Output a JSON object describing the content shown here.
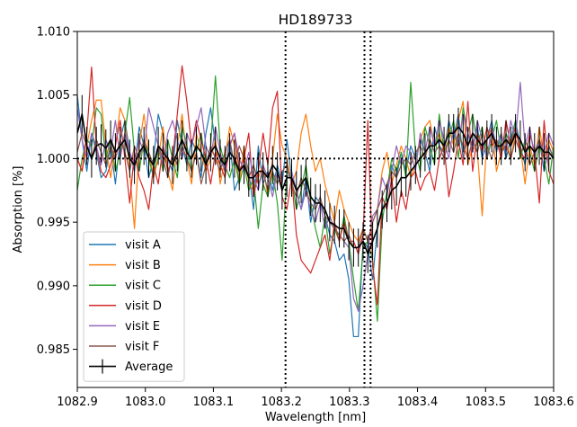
{
  "chart_data": {
    "type": "line",
    "title": "HD189733",
    "xlabel": "Wavelength [nm]",
    "ylabel": "Absorption [%]",
    "xlim": [
      1082.9,
      1083.6
    ],
    "ylim": [
      0.982,
      1.01
    ],
    "xticks": [
      1082.9,
      1083.0,
      1083.1,
      1083.2,
      1083.3,
      1083.4,
      1083.5,
      1083.6
    ],
    "xtick_labels": [
      "1082.9",
      "1083.0",
      "1083.1",
      "1083.2",
      "1083.3",
      "1083.4",
      "1083.5",
      "1083.6"
    ],
    "yticks": [
      0.985,
      0.99,
      0.995,
      1.0,
      1.005,
      1.01
    ],
    "ytick_labels": [
      "0.985",
      "0.990",
      "0.995",
      "1.000",
      "1.005",
      "1.010"
    ],
    "reference_lines": {
      "horizontal": [
        1.0
      ],
      "vertical": [
        1083.206,
        1083.322,
        1083.331
      ],
      "style": "dotted",
      "color": "#000000"
    },
    "legend_position": "lower-left",
    "legend": [
      "visit A",
      "visit B",
      "visit C",
      "visit D",
      "visit E",
      "visit F",
      "Average"
    ],
    "x": [
      1082.9,
      1082.907,
      1082.914,
      1082.921,
      1082.928,
      1082.935,
      1082.942,
      1082.949,
      1082.956,
      1082.963,
      1082.97,
      1082.977,
      1082.984,
      1082.991,
      1082.998,
      1083.005,
      1083.012,
      1083.019,
      1083.026,
      1083.033,
      1083.04,
      1083.047,
      1083.054,
      1083.061,
      1083.068,
      1083.075,
      1083.082,
      1083.089,
      1083.096,
      1083.103,
      1083.11,
      1083.117,
      1083.124,
      1083.131,
      1083.138,
      1083.145,
      1083.152,
      1083.159,
      1083.166,
      1083.173,
      1083.18,
      1083.187,
      1083.194,
      1083.201,
      1083.208,
      1083.215,
      1083.222,
      1083.229,
      1083.236,
      1083.243,
      1083.25,
      1083.257,
      1083.264,
      1083.271,
      1083.278,
      1083.285,
      1083.292,
      1083.299,
      1083.306,
      1083.313,
      1083.32,
      1083.327,
      1083.334,
      1083.341,
      1083.348,
      1083.355,
      1083.362,
      1083.369,
      1083.376,
      1083.383,
      1083.39,
      1083.397,
      1083.404,
      1083.411,
      1083.418,
      1083.425,
      1083.432,
      1083.439,
      1083.446,
      1083.453,
      1083.46,
      1083.467,
      1083.474,
      1083.481,
      1083.488,
      1083.495,
      1083.502,
      1083.509,
      1083.516,
      1083.523,
      1083.53,
      1083.537,
      1083.544,
      1083.551,
      1083.558,
      1083.565,
      1083.572,
      1083.579,
      1083.586,
      1083.593,
      1083.6
    ],
    "series": [
      {
        "name": "visit A",
        "color": "#1f77b4",
        "values": [
          1.005,
          1.0015,
          0.999,
          1.002,
          1.0005,
          0.9985,
          0.999,
          1.001,
          0.998,
          1.0015,
          1.003,
          1.0005,
          0.999,
          1.0025,
          1.001,
          0.9985,
          1.0,
          1.0035,
          1.002,
          1.0,
          0.999,
          1.003,
          1.001,
          0.9995,
          1.0015,
          1.0005,
          0.9985,
          1.002,
          1.004,
          1.001,
          1.0,
          0.999,
          1.0015,
          0.9975,
          0.9985,
          1.0005,
          0.999,
          0.996,
          1.001,
          0.998,
          0.999,
          0.9975,
          0.9995,
          0.998,
          1.0015,
          0.9985,
          0.9975,
          0.996,
          0.9985,
          0.995,
          0.997,
          0.9965,
          0.9955,
          0.994,
          0.9935,
          0.992,
          0.9925,
          0.9905,
          0.986,
          0.986,
          0.9935,
          0.993,
          0.9905,
          0.9945,
          0.996,
          0.997,
          0.9995,
          0.9985,
          1.0005,
          0.999,
          1.001,
          1.0,
          1.0015,
          1.0005,
          0.999,
          1.0025,
          1.001,
          1.0005,
          1.003,
          1.0015,
          1.0035,
          1.0,
          1.002,
          1.001,
          1.0025,
          1.0,
          1.0015,
          1.003,
          1.0005,
          1.002,
          1.0,
          1.0015,
          1.003,
          1.001,
          0.9995,
          1.002,
          1.0005,
          1.0015,
          0.999,
          1.001,
          1.0
        ]
      },
      {
        "name": "visit B",
        "color": "#ff7f0e",
        "values": [
          1.0,
          0.999,
          1.001,
          1.003,
          1.0046,
          1.0046,
          1.001,
          0.9985,
          1.001,
          1.004,
          1.003,
          0.999,
          0.9945,
          1.001,
          1.0035,
          1.0005,
          0.9985,
          1.0,
          1.0025,
          0.999,
          0.9975,
          1.001,
          1.0035,
          1.0,
          0.998,
          1.002,
          1.0005,
          0.999,
          1.0,
          1.0015,
          0.998,
          1.0,
          1.0025,
          1.001,
          0.998,
          1.001,
          0.998,
          0.9975,
          0.9985,
          0.9995,
          0.997,
          1.0,
          1.0035,
          1.001,
          1.0,
          0.998,
          0.999,
          1.002,
          1.0035,
          1.001,
          0.999,
          1.0,
          0.998,
          0.9965,
          0.995,
          0.9975,
          0.996,
          0.995,
          0.994,
          0.9935,
          0.9945,
          0.9935,
          0.995,
          0.996,
          0.999,
          1.0005,
          0.998,
          0.9995,
          1.001,
          1.0,
          0.9985,
          0.9995,
          1.0015,
          1.0025,
          1.003,
          1.001,
          1.002,
          1.0005,
          1.0025,
          1.001,
          1.003,
          1.0045,
          0.9995,
          1.001,
          1.0005,
          0.9955,
          1.0015,
          1.0025,
          0.999,
          1.0005,
          1.0015,
          1.0,
          1.002,
          1.001,
          0.998,
          1.001,
          0.9995,
          1.0025,
          1.0,
          1.0015,
          1.0005
        ]
      },
      {
        "name": "visit C",
        "color": "#2ca02c",
        "values": [
          0.9975,
          1.0,
          1.0015,
          1.001,
          1.004,
          1.0035,
          1.0,
          1.0015,
          0.999,
          1.0005,
          1.002,
          1.0048,
          1.0005,
          0.999,
          1.0015,
          1.0,
          0.9985,
          1.001,
          0.999,
          1.0015,
          1.0,
          0.9985,
          1.0025,
          1.001,
          0.999,
          1.0005,
          1.002,
          0.9995,
          1.001,
          1.0065,
          1.001,
          0.9995,
          0.9985,
          1.0,
          0.998,
          0.9995,
          0.9975,
          0.9985,
          0.9945,
          0.998,
          0.997,
          0.999,
          0.9965,
          0.992,
          0.999,
          0.9985,
          0.996,
          0.9975,
          0.9995,
          0.9965,
          0.9945,
          0.993,
          0.9955,
          0.9925,
          0.9945,
          0.9935,
          0.9955,
          0.9935,
          0.9905,
          0.988,
          0.993,
          0.9935,
          0.992,
          0.9872,
          0.995,
          0.9975,
          1.0,
          0.999,
          1.0005,
          0.9985,
          1.006,
          1.0005,
          0.999,
          1.0025,
          1.001,
          0.9995,
          1.0035,
          1.0005,
          1.0015,
          1.003,
          1.0,
          1.004,
          1.002,
          1.0035,
          1.001,
          1.0025,
          1.0,
          1.0015,
          1.003,
          1.0005,
          1.002,
          1.001,
          1.003,
          1.0,
          1.0015,
          1.0005,
          0.999,
          1.001,
          1.0,
          0.998,
          1.001
        ]
      },
      {
        "name": "visit D",
        "color": "#d62728",
        "values": [
          1.0,
          0.999,
          1.002,
          1.0072,
          1.001,
          0.999,
          0.9985,
          0.9995,
          1.001,
          1.003,
          1.0,
          0.9965,
          1.0005,
          0.9985,
          0.9975,
          0.996,
          0.9995,
          0.998,
          1.001,
          0.999,
          1.0,
          1.0035,
          1.0073,
          1.0045,
          1.001,
          1.003,
          1.0015,
          1.0,
          0.998,
          1.0005,
          0.9995,
          0.9985,
          1.001,
          1.002,
          0.999,
          1.0,
          1.002,
          0.997,
          0.999,
          1.002,
          0.9995,
          1.004,
          1.0053,
          0.997,
          0.996,
          0.9985,
          0.994,
          0.992,
          0.9915,
          0.991,
          0.992,
          0.993,
          0.994,
          0.992,
          0.995,
          0.9935,
          0.995,
          0.9935,
          0.9935,
          0.9925,
          0.994,
          1.003,
          0.9915,
          0.9885,
          0.997,
          0.996,
          0.9985,
          0.995,
          0.9975,
          0.996,
          0.9985,
          0.999,
          0.9975,
          0.9985,
          0.999,
          0.9975,
          1.0,
          1.001,
          0.997,
          0.999,
          1.0015,
          0.9995,
          1.0045,
          0.999,
          1.002,
          1.0005,
          1.0025,
          1.001,
          1.0015,
          1.0,
          1.003,
          1.001,
          1.0025,
          1.0005,
          1.0,
          1.002,
          1.0005,
          0.9965,
          1.003,
          0.999,
          0.998
        ]
      },
      {
        "name": "visit E",
        "color": "#9467bd",
        "values": [
          1.004,
          1.0015,
          1.0,
          1.002,
          1.001,
          0.9995,
          1.0015,
          1.0005,
          1.003,
          1.0,
          1.002,
          1.0005,
          0.9995,
          1.0015,
          1.0005,
          1.004,
          1.0025,
          1.001,
          0.9995,
          1.002,
          1.003,
          1.0015,
          1.0,
          1.002,
          1.001,
          1.0025,
          1.004,
          1.001,
          1.0,
          1.0025,
          1.0005,
          0.999,
          1.001,
          1.002,
          1.0,
          0.999,
          1.0005,
          0.9985,
          0.9975,
          0.9995,
          0.9985,
          0.997,
          0.999,
          0.9975,
          0.9985,
          0.999,
          0.9975,
          0.996,
          0.9975,
          0.996,
          0.995,
          0.9965,
          0.9945,
          0.9955,
          0.9945,
          0.994,
          0.9935,
          0.993,
          0.989,
          0.988,
          0.99,
          0.9925,
          0.9955,
          0.996,
          0.9985,
          0.9975,
          0.999,
          1.001,
          0.9995,
          1.001,
          1.0005,
          0.999,
          1.002,
          1.0005,
          1.0025,
          1.001,
          1.003,
          1.0015,
          1.0,
          1.0025,
          1.001,
          1.0035,
          1.002,
          1.0005,
          1.003,
          1.0015,
          1.0,
          1.0025,
          1.001,
          1.002,
          1.0005,
          1.003,
          1.0015,
          1.006,
          1.001,
          1.0025,
          1.0,
          1.0015,
          1.0005,
          1.002,
          1.001
        ]
      },
      {
        "name": "visit F",
        "color": "#8c564b",
        "values": [
          1.0005,
          1.002,
          1.001,
          1.0,
          1.0015,
          1.0005,
          0.9995,
          1.001,
          1.0,
          1.0015,
          1.0005,
          0.999,
          1.001,
          1.0,
          1.0015,
          1.0005,
          0.9995,
          1.001,
          1.0,
          0.9985,
          1.0005,
          0.9995,
          1.001,
          1.0,
          0.999,
          1.0005,
          0.998,
          0.9995,
          1.001,
          1.0,
          0.999,
          1.0005,
          1.0015,
          0.9995,
          1.001,
          1.0,
          0.9985,
          0.9995,
          0.998,
          0.999,
          0.9975,
          0.999,
          0.998,
          0.999,
          0.9995,
          0.998,
          0.997,
          0.9985,
          0.9975,
          0.9965,
          0.996,
          0.997,
          0.9955,
          0.995,
          0.9945,
          0.994,
          0.9935,
          0.994,
          0.993,
          0.993,
          0.9945,
          0.9935,
          0.995,
          0.996,
          0.997,
          0.998,
          0.999,
          0.9985,
          0.9995,
          1.0,
          0.9995,
          1.0005,
          1.001,
          1.0,
          1.0015,
          1.0005,
          1.001,
          1.0,
          1.0015,
          1.0005,
          1.002,
          1.001,
          1.0,
          1.0015,
          1.0005,
          1.002,
          1.001,
          1.0,
          1.0015,
          1.0005,
          1.001,
          1.0,
          1.0015,
          1.0005,
          1.001,
          0.9995,
          1.0005,
          1.0015,
          1.0,
          1.001,
          1.0
        ]
      },
      {
        "name": "Average",
        "color": "#000000",
        "values": [
          1.002,
          1.0035,
          1.001,
          1.0,
          1.001,
          1.0012,
          1.0008,
          1.0015,
          1.0005,
          1.001,
          1.0015,
          1.0,
          0.9995,
          1.0005,
          1.001,
          1.0,
          0.9995,
          1.001,
          1.0005,
          1.0,
          0.9995,
          1.0005,
          1.0015,
          1.0005,
          1.0,
          1.001,
          1.0005,
          0.9995,
          1.0005,
          1.001,
          1.0,
          0.9995,
          1.0005,
          1.0,
          0.999,
          0.9995,
          0.9985,
          0.9985,
          0.999,
          0.999,
          0.9985,
          0.9995,
          0.999,
          0.9975,
          0.9985,
          0.9985,
          0.9975,
          0.998,
          0.9985,
          0.997,
          0.9965,
          0.9965,
          0.996,
          0.995,
          0.9948,
          0.9945,
          0.9945,
          0.9935,
          0.993,
          0.993,
          0.9935,
          0.9925,
          0.9935,
          0.9945,
          0.996,
          0.9965,
          0.9975,
          0.9978,
          0.9985,
          0.9985,
          0.999,
          0.9995,
          1.0,
          1.0005,
          1.001,
          1.001,
          1.0015,
          1.001,
          1.002,
          1.002,
          1.0025,
          1.002,
          1.001,
          1.002,
          1.0015,
          1.001,
          1.0015,
          1.002,
          1.001,
          1.001,
          1.0015,
          1.001,
          1.002,
          1.0015,
          1.0005,
          1.001,
          1.0005,
          1.001,
          1.0005,
          1.0005,
          1.0
        ],
        "errorbar": 0.0015
      }
    ]
  }
}
